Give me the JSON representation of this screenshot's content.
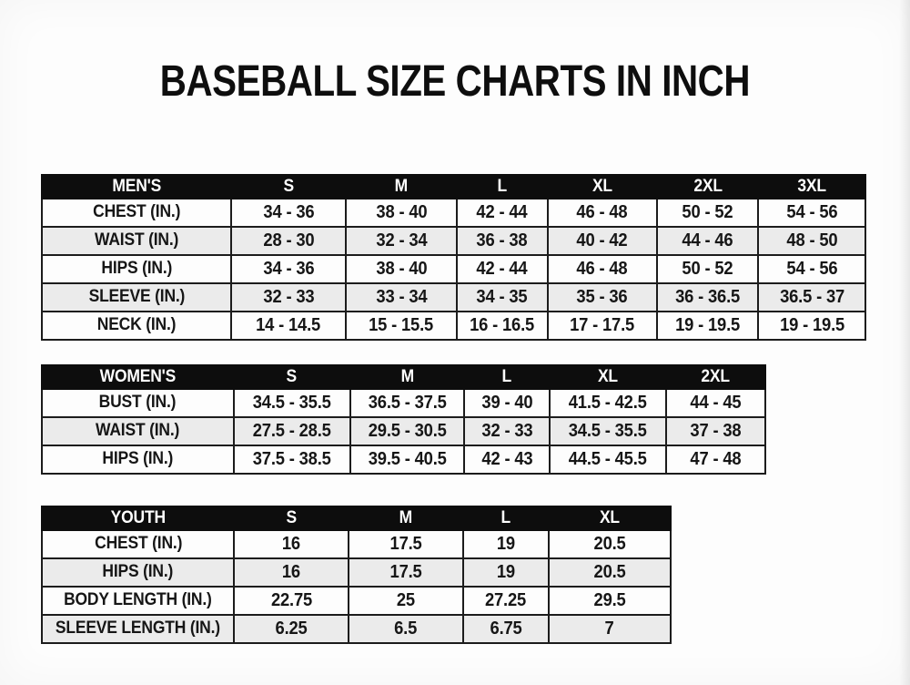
{
  "page_title": "BASEBALL SIZE CHARTS IN INCH",
  "colors": {
    "page_bg": "#fdfdfd",
    "header_bg": "#0d0d0d",
    "header_text": "#ffffff",
    "row_stripe": "#ebebeb",
    "grid_border": "#1c1c1c",
    "text": "#161616"
  },
  "chart_data": [
    {
      "type": "table",
      "title": "MEN'S",
      "columns": [
        "MEN'S",
        "S",
        "M",
        "L",
        "XL",
        "2XL",
        "3XL"
      ],
      "rows": [
        [
          "CHEST (IN.)",
          "34 - 36",
          "38 - 40",
          "42 - 44",
          "46 - 48",
          "50 - 52",
          "54 - 56"
        ],
        [
          "WAIST (IN.)",
          "28 - 30",
          "32 - 34",
          "36 - 38",
          "40 - 42",
          "44 - 46",
          "48 - 50"
        ],
        [
          "HIPS (IN.)",
          "34 - 36",
          "38 - 40",
          "42 - 44",
          "46 - 48",
          "50 - 52",
          "54 - 56"
        ],
        [
          "SLEEVE (IN.)",
          "32 - 33",
          "33 - 34",
          "34 - 35",
          "35 - 36",
          "36 - 36.5",
          "36.5 - 37"
        ],
        [
          "NECK (IN.)",
          "14 - 14.5",
          "15 - 15.5",
          "16 - 16.5",
          "17 - 17.5",
          "19 - 19.5",
          "19 - 19.5"
        ]
      ]
    },
    {
      "type": "table",
      "title": "WOMEN'S",
      "columns": [
        "WOMEN'S",
        "S",
        "M",
        "L",
        "XL",
        "2XL"
      ],
      "rows": [
        [
          "BUST (IN.)",
          "34.5 - 35.5",
          "36.5 - 37.5",
          "39 - 40",
          "41.5 - 42.5",
          "44 - 45"
        ],
        [
          "WAIST (IN.)",
          "27.5 - 28.5",
          "29.5 - 30.5",
          "32 - 33",
          "34.5 - 35.5",
          "37 - 38"
        ],
        [
          "HIPS (IN.)",
          "37.5 - 38.5",
          "39.5 - 40.5",
          "42 - 43",
          "44.5 - 45.5",
          "47 - 48"
        ]
      ]
    },
    {
      "type": "table",
      "title": "YOUTH",
      "columns": [
        "YOUTH",
        "S",
        "M",
        "L",
        "XL"
      ],
      "rows": [
        [
          "CHEST (IN.)",
          "16",
          "17.5",
          "19",
          "20.5"
        ],
        [
          "HIPS (IN.)",
          "16",
          "17.5",
          "19",
          "20.5"
        ],
        [
          "BODY LENGTH (IN.)",
          "22.75",
          "25",
          "27.25",
          "29.5"
        ],
        [
          "SLEEVE LENGTH (IN.)",
          "6.25",
          "6.5",
          "6.75",
          "7"
        ]
      ]
    }
  ]
}
